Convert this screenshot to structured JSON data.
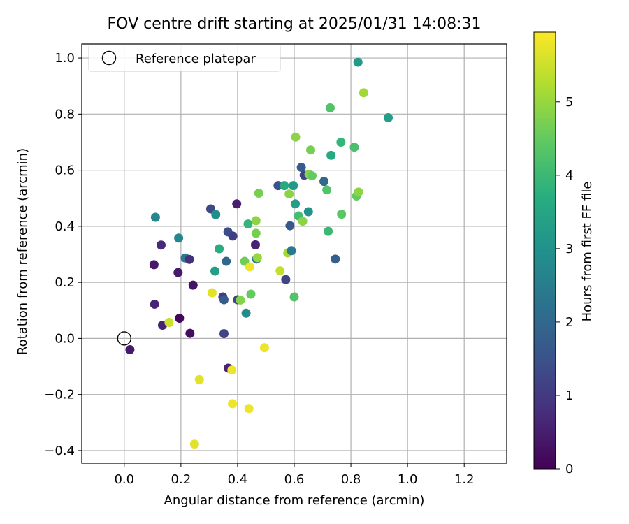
{
  "chart_data": {
    "type": "scatter",
    "title": "FOV centre drift starting at 2025/01/31 14:08:31",
    "xlabel": "Angular distance from reference (arcmin)",
    "ylabel": "Rotation from reference (arcmin)",
    "xlim": [
      -0.15,
      1.35
    ],
    "ylim": [
      -0.445,
      1.05
    ],
    "xticks": [
      0.0,
      0.2,
      0.4,
      0.6,
      0.8,
      1.0,
      1.2
    ],
    "xtick_labels": [
      "0.0",
      "0.2",
      "0.4",
      "0.6",
      "0.8",
      "1.0",
      "1.2"
    ],
    "yticks": [
      -0.4,
      -0.2,
      0.0,
      0.2,
      0.4,
      0.6,
      0.8,
      1.0
    ],
    "ytick_labels": [
      "−0.4",
      "−0.2",
      "0.0",
      "0.2",
      "0.4",
      "0.6",
      "0.8",
      "1.0"
    ],
    "grid": true,
    "legend": {
      "placement": "top-left",
      "entries": [
        "Reference platepar"
      ]
    },
    "reference": {
      "x": 0.0,
      "y": 0.0
    },
    "colorbar": {
      "label": "Hours from first FF file",
      "min": 0,
      "max": 5.95,
      "ticks": [
        0,
        1,
        2,
        3,
        4,
        5
      ],
      "tick_labels": [
        "0",
        "1",
        "2",
        "3",
        "4",
        "5"
      ],
      "colormap": "viridis"
    },
    "series": [
      {
        "points": [
          {
            "x": 0.02,
            "y": -0.04,
            "h": 0.4
          },
          {
            "x": 0.105,
            "y": 0.263,
            "h": 0.4
          },
          {
            "x": 0.107,
            "y": 0.122,
            "h": 0.6
          },
          {
            "x": 0.11,
            "y": 0.432,
            "h": 2.7
          },
          {
            "x": 0.13,
            "y": 0.333,
            "h": 0.7
          },
          {
            "x": 0.135,
            "y": 0.047,
            "h": 0.6
          },
          {
            "x": 0.158,
            "y": 0.057,
            "h": 5.5
          },
          {
            "x": 0.19,
            "y": 0.235,
            "h": 0.4
          },
          {
            "x": 0.192,
            "y": 0.358,
            "h": 2.7
          },
          {
            "x": 0.195,
            "y": 0.072,
            "h": 0.1
          },
          {
            "x": 0.215,
            "y": 0.287,
            "h": 2.4
          },
          {
            "x": 0.23,
            "y": 0.282,
            "h": 0.8
          },
          {
            "x": 0.232,
            "y": 0.018,
            "h": 0.2
          },
          {
            "x": 0.243,
            "y": 0.19,
            "h": 0.3
          },
          {
            "x": 0.248,
            "y": -0.377,
            "h": 5.7
          },
          {
            "x": 0.265,
            "y": -0.147,
            "h": 5.7
          },
          {
            "x": 0.305,
            "y": 0.462,
            "h": 1.3
          },
          {
            "x": 0.31,
            "y": 0.163,
            "h": 5.7
          },
          {
            "x": 0.32,
            "y": 0.24,
            "h": 3.3
          },
          {
            "x": 0.323,
            "y": 0.442,
            "h": 2.9
          },
          {
            "x": 0.335,
            "y": 0.32,
            "h": 3.7
          },
          {
            "x": 0.348,
            "y": 0.148,
            "h": 1.1
          },
          {
            "x": 0.352,
            "y": 0.138,
            "h": 1.7
          },
          {
            "x": 0.352,
            "y": 0.017,
            "h": 1.2
          },
          {
            "x": 0.36,
            "y": 0.275,
            "h": 2.0
          },
          {
            "x": 0.366,
            "y": 0.38,
            "h": 1.4
          },
          {
            "x": 0.367,
            "y": -0.106,
            "h": 0.6
          },
          {
            "x": 0.38,
            "y": -0.113,
            "h": 5.8
          },
          {
            "x": 0.382,
            "y": -0.233,
            "h": 5.8
          },
          {
            "x": 0.383,
            "y": 0.365,
            "h": 1.1
          },
          {
            "x": 0.397,
            "y": 0.48,
            "h": 0.5
          },
          {
            "x": 0.4,
            "y": 0.138,
            "h": 1.2
          },
          {
            "x": 0.41,
            "y": 0.137,
            "h": 4.8
          },
          {
            "x": 0.425,
            "y": 0.275,
            "h": 4.6
          },
          {
            "x": 0.43,
            "y": 0.09,
            "h": 2.8
          },
          {
            "x": 0.437,
            "y": 0.408,
            "h": 3.9
          },
          {
            "x": 0.44,
            "y": -0.25,
            "h": 5.8
          },
          {
            "x": 0.443,
            "y": 0.255,
            "h": 5.8
          },
          {
            "x": 0.447,
            "y": 0.158,
            "h": 4.5
          },
          {
            "x": 0.463,
            "y": 0.334,
            "h": 0.6
          },
          {
            "x": 0.465,
            "y": 0.375,
            "h": 4.7
          },
          {
            "x": 0.465,
            "y": 0.42,
            "h": 4.9
          },
          {
            "x": 0.467,
            "y": 0.283,
            "h": 2.3
          },
          {
            "x": 0.47,
            "y": 0.288,
            "h": 5.0
          },
          {
            "x": 0.475,
            "y": 0.518,
            "h": 4.7
          },
          {
            "x": 0.495,
            "y": -0.033,
            "h": 5.8
          },
          {
            "x": 0.543,
            "y": 0.545,
            "h": 1.5
          },
          {
            "x": 0.55,
            "y": 0.241,
            "h": 5.4
          },
          {
            "x": 0.565,
            "y": 0.545,
            "h": 3.6
          },
          {
            "x": 0.57,
            "y": 0.21,
            "h": 1.2
          },
          {
            "x": 0.577,
            "y": 0.305,
            "h": 5.1
          },
          {
            "x": 0.582,
            "y": 0.515,
            "h": 4.9
          },
          {
            "x": 0.585,
            "y": 0.402,
            "h": 1.6
          },
          {
            "x": 0.59,
            "y": 0.313,
            "h": 2.4
          },
          {
            "x": 0.597,
            "y": 0.545,
            "h": 3.2
          },
          {
            "x": 0.6,
            "y": 0.148,
            "h": 4.3
          },
          {
            "x": 0.604,
            "y": 0.48,
            "h": 3.3
          },
          {
            "x": 0.605,
            "y": 0.718,
            "h": 4.9
          },
          {
            "x": 0.615,
            "y": 0.437,
            "h": 4.1
          },
          {
            "x": 0.625,
            "y": 0.61,
            "h": 1.7
          },
          {
            "x": 0.63,
            "y": 0.418,
            "h": 4.9
          },
          {
            "x": 0.635,
            "y": 0.582,
            "h": 1.2
          },
          {
            "x": 0.65,
            "y": 0.452,
            "h": 3.0
          },
          {
            "x": 0.652,
            "y": 0.585,
            "h": 4.8
          },
          {
            "x": 0.658,
            "y": 0.672,
            "h": 4.7
          },
          {
            "x": 0.663,
            "y": 0.58,
            "h": 4.5
          },
          {
            "x": 0.705,
            "y": 0.56,
            "h": 2.0
          },
          {
            "x": 0.715,
            "y": 0.53,
            "h": 4.3
          },
          {
            "x": 0.72,
            "y": 0.382,
            "h": 4.0
          },
          {
            "x": 0.727,
            "y": 0.822,
            "h": 4.3
          },
          {
            "x": 0.73,
            "y": 0.653,
            "h": 3.6
          },
          {
            "x": 0.745,
            "y": 0.283,
            "h": 1.8
          },
          {
            "x": 0.765,
            "y": 0.7,
            "h": 3.9
          },
          {
            "x": 0.767,
            "y": 0.443,
            "h": 4.4
          },
          {
            "x": 0.812,
            "y": 0.682,
            "h": 4.2
          },
          {
            "x": 0.82,
            "y": 0.508,
            "h": 4.5
          },
          {
            "x": 0.825,
            "y": 0.985,
            "h": 3.2
          },
          {
            "x": 0.827,
            "y": 0.522,
            "h": 4.9
          },
          {
            "x": 0.845,
            "y": 0.876,
            "h": 5.1
          },
          {
            "x": 0.932,
            "y": 0.787,
            "h": 3.3
          }
        ]
      }
    ]
  }
}
